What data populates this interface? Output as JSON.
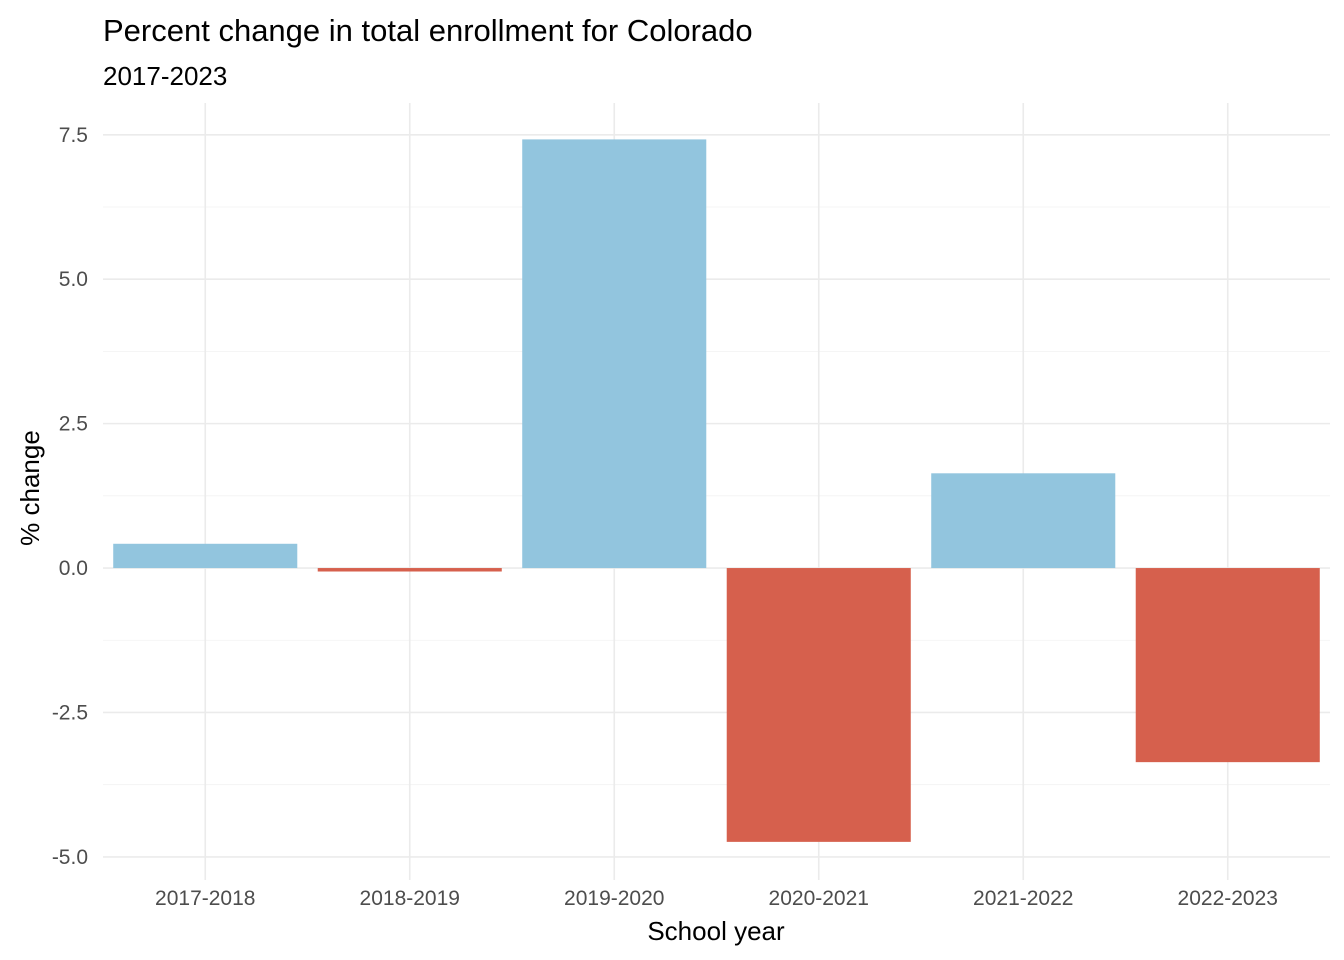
{
  "chart_data": {
    "type": "bar",
    "title": "Percent change in total enrollment for Colorado",
    "subtitle": "2017-2023",
    "xlabel": "School year",
    "ylabel": "% change",
    "categories": [
      "2017-2018",
      "2018-2019",
      "2019-2020",
      "2020-2021",
      "2021-2022",
      "2022-2023"
    ],
    "values": [
      0.42,
      -0.06,
      7.42,
      -4.74,
      1.64,
      -3.36
    ],
    "ylim": [
      -5.4,
      8.05
    ],
    "yticks": [
      7.5,
      5.0,
      2.5,
      0.0,
      -2.5,
      -5.0
    ],
    "ytick_labels": [
      "7.5",
      "5.0",
      "2.5",
      "0.0",
      "-2.5",
      "-5.0"
    ],
    "grid": true,
    "legend": "none",
    "colors": {
      "positive": "#92c5de",
      "negative": "#d6604d"
    }
  }
}
